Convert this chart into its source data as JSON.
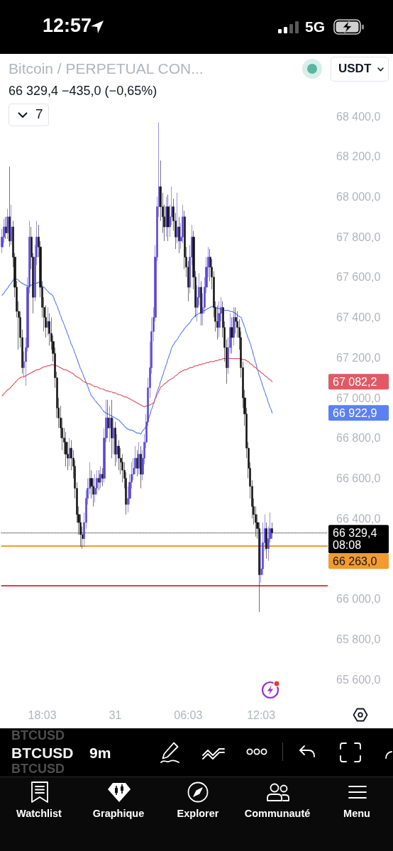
{
  "chart_data": {
    "type": "candlestick",
    "title": "Bitcoin / PERPETUAL CON...",
    "subtitle": "66 329,4 −435,0 (−0,65%)",
    "categories": [
      null,
      null,
      null,
      null,
      null,
      null,
      null,
      null,
      null,
      null,
      null,
      null,
      null,
      null,
      null,
      null,
      null,
      null,
      null,
      null,
      null,
      null,
      "18:03",
      null,
      null,
      null,
      null,
      null,
      null,
      null,
      null,
      null,
      null,
      null,
      null,
      null,
      null,
      null,
      null,
      null,
      null,
      null,
      null,
      null,
      null,
      null,
      null,
      null,
      null,
      null,
      null,
      null,
      null,
      null,
      null,
      null,
      null,
      null,
      null,
      null,
      null,
      null,
      "31",
      null,
      null,
      null,
      null,
      null,
      null,
      null,
      null,
      null,
      null,
      null,
      null,
      null,
      null,
      null,
      null,
      null,
      null,
      null,
      null,
      null,
      null,
      null,
      null,
      null,
      null,
      null,
      null,
      null,
      null,
      null,
      null,
      null,
      null,
      null,
      null,
      null,
      null,
      null,
      "06:03",
      null,
      null,
      null,
      null,
      null,
      null,
      null,
      null,
      null,
      null,
      null,
      null,
      null,
      null,
      null,
      null,
      null,
      null,
      null,
      null,
      null,
      null,
      null,
      null,
      null,
      null,
      null,
      null,
      null,
      null,
      null,
      null,
      null,
      null,
      null,
      null,
      null,
      null,
      null,
      "12:03",
      null,
      null,
      null,
      null,
      null,
      null,
      null,
      null,
      null,
      null,
      null,
      null,
      null,
      null,
      null,
      null,
      null,
      null,
      null,
      null,
      null,
      null,
      null,
      null,
      null,
      null,
      null,
      null,
      null,
      null,
      null,
      null,
      null,
      null,
      null,
      null
    ],
    "ohlc": [
      [
        67750,
        67840,
        67720,
        67800
      ],
      [
        67800,
        67890,
        67770,
        67850
      ],
      [
        67850,
        67900,
        67790,
        67820
      ],
      [
        67820,
        67940,
        67790,
        67900
      ],
      [
        67900,
        68150,
        67750,
        67780
      ],
      [
        67780,
        67960,
        67760,
        67850
      ],
      [
        67850,
        67880,
        67650,
        67700
      ],
      [
        67700,
        67720,
        67500,
        67550
      ],
      [
        67550,
        67580,
        67400,
        67430
      ],
      [
        67430,
        67480,
        67240,
        67400
      ],
      [
        67400,
        67430,
        67250,
        67300
      ],
      [
        67300,
        67340,
        67120,
        67150
      ],
      [
        67150,
        67230,
        67100,
        67180
      ],
      [
        67180,
        67300,
        67060,
        67250
      ],
      [
        67250,
        67600,
        67230,
        67550
      ],
      [
        67550,
        67880,
        67520,
        67800
      ],
      [
        67800,
        67850,
        67640,
        67700
      ],
      [
        67700,
        67720,
        67420,
        67500
      ],
      [
        67500,
        67760,
        67480,
        67700
      ],
      [
        67700,
        67880,
        67660,
        67800
      ],
      [
        67800,
        67860,
        67700,
        67750
      ],
      [
        67750,
        67780,
        67500,
        67550
      ],
      [
        67550,
        67580,
        67400,
        67450
      ],
      [
        67450,
        67500,
        67330,
        67400
      ],
      [
        67400,
        67460,
        67300,
        67350
      ],
      [
        67350,
        67450,
        67310,
        67380
      ],
      [
        67380,
        67420,
        67260,
        67320
      ],
      [
        67320,
        67400,
        67240,
        67280
      ],
      [
        67280,
        67310,
        67180,
        67220
      ],
      [
        67220,
        67250,
        67050,
        67100
      ],
      [
        67100,
        67130,
        66900,
        66950
      ],
      [
        66950,
        67000,
        66850,
        66900
      ],
      [
        66900,
        66960,
        66800,
        66850
      ],
      [
        66850,
        66900,
        66740,
        66800
      ],
      [
        66800,
        66850,
        66720,
        66780
      ],
      [
        66780,
        66830,
        66660,
        66720
      ],
      [
        66720,
        66780,
        66640,
        66700
      ],
      [
        66700,
        66800,
        66660,
        66750
      ],
      [
        66750,
        66790,
        66640,
        66700
      ],
      [
        66700,
        66740,
        66600,
        66660
      ],
      [
        66660,
        66690,
        66500,
        66550
      ],
      [
        66550,
        66580,
        66380,
        66420
      ],
      [
        66420,
        66460,
        66320,
        66380
      ],
      [
        66380,
        66420,
        66260,
        66320
      ],
      [
        66320,
        66360,
        66250,
        66300
      ],
      [
        66300,
        66430,
        66260,
        66380
      ],
      [
        66380,
        66540,
        66350,
        66500
      ],
      [
        66500,
        66600,
        66470,
        66550
      ],
      [
        66550,
        66680,
        66520,
        66600
      ],
      [
        66600,
        66640,
        66500,
        66560
      ],
      [
        66560,
        66600,
        66460,
        66520
      ],
      [
        66520,
        66620,
        66480,
        66550
      ],
      [
        66550,
        66640,
        66520,
        66600
      ],
      [
        66600,
        66640,
        66540,
        66580
      ],
      [
        66580,
        66660,
        66550,
        66620
      ],
      [
        66620,
        66650,
        66560,
        66600
      ],
      [
        66600,
        66850,
        66580,
        66800
      ],
      [
        66800,
        66990,
        66780,
        66900
      ],
      [
        66900,
        66990,
        66800,
        66850
      ],
      [
        66850,
        66960,
        66780,
        66900
      ],
      [
        66900,
        66990,
        66700,
        66800
      ],
      [
        66800,
        66900,
        66720,
        66850
      ],
      [
        66850,
        66880,
        66660,
        66720
      ],
      [
        66720,
        66820,
        66680,
        66760
      ],
      [
        66760,
        66790,
        66640,
        66700
      ],
      [
        66700,
        66750,
        66620,
        66680
      ],
      [
        66680,
        66720,
        66580,
        66640
      ],
      [
        66640,
        66680,
        66550,
        66600
      ],
      [
        66600,
        66630,
        66420,
        66470
      ],
      [
        66470,
        66560,
        66430,
        66500
      ],
      [
        66500,
        66620,
        66470,
        66580
      ],
      [
        66580,
        66680,
        66550,
        66620
      ],
      [
        66620,
        66700,
        66590,
        66650
      ],
      [
        66650,
        66760,
        66620,
        66700
      ],
      [
        66700,
        66740,
        66610,
        66650
      ],
      [
        66650,
        66780,
        66620,
        66720
      ],
      [
        66720,
        66760,
        66550,
        66620
      ],
      [
        66620,
        66740,
        66590,
        66700
      ],
      [
        66700,
        66820,
        66670,
        66780
      ],
      [
        66780,
        66920,
        66750,
        66880
      ],
      [
        66880,
        67100,
        66860,
        67050
      ],
      [
        67050,
        67280,
        67000,
        67150
      ],
      [
        67150,
        67400,
        67120,
        67330
      ],
      [
        67330,
        67450,
        67280,
        67400
      ],
      [
        67400,
        67760,
        67380,
        67700
      ],
      [
        67700,
        68000,
        67680,
        67950
      ],
      [
        67950,
        68370,
        67900,
        68050
      ],
      [
        68050,
        68180,
        67880,
        67950
      ],
      [
        67950,
        68020,
        67820,
        67900
      ],
      [
        67900,
        67960,
        67780,
        67850
      ],
      [
        67850,
        68000,
        67800,
        67950
      ],
      [
        67950,
        68010,
        67780,
        67850
      ],
      [
        67850,
        67960,
        67800,
        67900
      ],
      [
        67900,
        68050,
        67860,
        67950
      ],
      [
        67950,
        67990,
        67830,
        67880
      ],
      [
        67880,
        67920,
        67740,
        67800
      ],
      [
        67800,
        68020,
        67770,
        67850
      ],
      [
        67850,
        67900,
        67720,
        67780
      ],
      [
        67780,
        67870,
        67740,
        67800
      ],
      [
        67800,
        67960,
        67770,
        67900
      ],
      [
        67900,
        67930,
        67640,
        67700
      ],
      [
        67700,
        67750,
        67600,
        67650
      ],
      [
        67650,
        67680,
        67480,
        67550
      ],
      [
        67550,
        67760,
        67520,
        67700
      ],
      [
        67700,
        67860,
        67660,
        67800
      ],
      [
        67800,
        67830,
        67540,
        67600
      ],
      [
        67600,
        67630,
        67400,
        67450
      ],
      [
        67450,
        67560,
        67380,
        67500
      ],
      [
        67500,
        67620,
        67460,
        67550
      ],
      [
        67550,
        67580,
        67360,
        67420
      ],
      [
        67420,
        67520,
        67360,
        67450
      ],
      [
        67450,
        67600,
        67420,
        67550
      ],
      [
        67550,
        67700,
        67520,
        67650
      ],
      [
        67650,
        67750,
        67600,
        67700
      ],
      [
        67700,
        67740,
        67580,
        67650
      ],
      [
        67650,
        67690,
        67540,
        67600
      ],
      [
        67600,
        67630,
        67400,
        67450
      ],
      [
        67450,
        67480,
        67330,
        67380
      ],
      [
        67380,
        67460,
        67290,
        67350
      ],
      [
        67350,
        67480,
        67300,
        67420
      ],
      [
        67420,
        67500,
        67380,
        67450
      ],
      [
        67450,
        67480,
        67300,
        67350
      ],
      [
        67350,
        67380,
        67180,
        67250
      ],
      [
        67250,
        67290,
        67070,
        67150
      ],
      [
        67150,
        67300,
        67120,
        67250
      ],
      [
        67250,
        67420,
        67220,
        67350
      ],
      [
        67350,
        67400,
        67220,
        67300
      ],
      [
        67300,
        67450,
        67260,
        67400
      ],
      [
        67400,
        67450,
        67320,
        67380
      ],
      [
        67380,
        67430,
        67300,
        67350
      ],
      [
        67350,
        67390,
        67240,
        67300
      ],
      [
        67300,
        67330,
        67100,
        67150
      ],
      [
        67150,
        67180,
        66950,
        67000
      ],
      [
        67000,
        67040,
        66860,
        66920
      ],
      [
        66920,
        66950,
        66700,
        66750
      ],
      [
        66750,
        66780,
        66600,
        66650
      ],
      [
        66650,
        66680,
        66500,
        66560
      ],
      [
        66560,
        66590,
        66400,
        66460
      ],
      [
        66460,
        66500,
        66370,
        66420
      ],
      [
        66420,
        66460,
        66310,
        66380
      ],
      [
        66380,
        66420,
        66300,
        66350
      ],
      [
        66350,
        66380,
        65935,
        66120
      ],
      [
        66120,
        66330,
        66080,
        66150
      ],
      [
        66150,
        66380,
        66120,
        66280
      ],
      [
        66280,
        66420,
        66240,
        66350
      ],
      [
        66350,
        66380,
        66200,
        66250
      ],
      [
        66250,
        66360,
        66190,
        66300
      ],
      [
        66300,
        66430,
        66280,
        66350
      ],
      [
        66350,
        66380,
        66300,
        66329.4
      ],
      null,
      null,
      null,
      null,
      null,
      null,
      null,
      null,
      null,
      null,
      null,
      null,
      null,
      null,
      null,
      null,
      null,
      null,
      null,
      null,
      null,
      null,
      null,
      null,
      null,
      null,
      null,
      null,
      null,
      null
    ],
    "colors": [
      "#5b46d6",
      "#5b46d6",
      "#141414",
      "#5b46d6",
      "#141414",
      "#5b46d6",
      "#141414",
      "#141414",
      "#141414",
      "#141414",
      "#141414",
      "#141414",
      "#5b46d6",
      "#5b46d6",
      "#5b46d6",
      "#5b46d6",
      "#141414",
      "#141414",
      "#5b46d6",
      "#5b46d6",
      "#141414",
      "#141414",
      "#141414",
      "#141414",
      "#141414",
      "#5b46d6",
      "#141414",
      "#141414",
      "#141414",
      "#141414",
      "#141414",
      "#141414",
      "#141414",
      "#141414",
      "#141414",
      "#141414",
      "#141414",
      "#5b46d6",
      "#141414",
      "#141414",
      "#141414",
      "#141414",
      "#141414",
      "#141414",
      "#141414",
      "#5b46d6",
      "#5b46d6",
      "#5b46d6",
      "#5b46d6",
      "#141414",
      "#141414",
      "#5b46d6",
      "#5b46d6",
      "#141414",
      "#5b46d6",
      "#141414",
      "#5b46d6",
      "#5b46d6",
      "#141414",
      "#5b46d6",
      "#141414",
      "#5b46d6",
      "#141414",
      "#5b46d6",
      "#141414",
      "#141414",
      "#141414",
      "#141414",
      "#141414",
      "#5b46d6",
      "#5b46d6",
      "#5b46d6",
      "#5b46d6",
      "#5b46d6",
      "#141414",
      "#5b46d6",
      "#141414",
      "#5b46d6",
      "#5b46d6",
      "#5b46d6",
      "#5b46d6",
      "#5b46d6",
      "#5b46d6",
      "#5b46d6",
      "#5b46d6",
      "#5b46d6",
      "#5b46d6",
      "#141414",
      "#141414",
      "#141414",
      "#5b46d6",
      "#141414",
      "#5b46d6",
      "#5b46d6",
      "#141414",
      "#141414",
      "#5b46d6",
      "#141414",
      "#5b46d6",
      "#5b46d6",
      "#141414",
      "#141414",
      "#141414",
      "#5b46d6",
      "#5b46d6",
      "#141414",
      "#141414",
      "#5b46d6",
      "#5b46d6",
      "#141414",
      "#5b46d6",
      "#5b46d6",
      "#5b46d6",
      "#5b46d6",
      "#141414",
      "#141414",
      "#141414",
      "#141414",
      "#141414",
      "#5b46d6",
      "#5b46d6",
      "#141414",
      "#141414",
      "#141414",
      "#5b46d6",
      "#5b46d6",
      "#141414",
      "#5b46d6",
      "#141414",
      "#141414",
      "#141414",
      "#141414",
      "#141414",
      "#141414",
      "#141414",
      "#141414",
      "#141414",
      "#141414",
      "#141414",
      "#141414",
      "#141414",
      "#141414",
      "#5b46d6",
      "#5b46d6",
      "#5b46d6",
      "#141414",
      "#5b46d6",
      "#5b46d6",
      "#141414",
      null,
      null,
      null,
      null,
      null,
      null,
      null,
      null,
      null,
      null,
      null,
      null,
      null,
      null,
      null,
      null,
      null,
      null,
      null,
      null,
      null,
      null,
      null,
      null,
      null,
      null,
      null,
      null,
      null,
      null
    ],
    "series": [
      {
        "type": "line",
        "color": "#5a80f2",
        "values": [
          67510,
          67520,
          67535,
          67545,
          67560,
          67570,
          67585,
          67595,
          67590,
          67585,
          67575,
          67570,
          67565,
          67560,
          67555,
          67560,
          67560,
          67565,
          67570,
          67570,
          67575,
          67565,
          67555,
          67550,
          67540,
          67530,
          67520,
          67515,
          67505,
          67480,
          67460,
          67435,
          67410,
          67385,
          67365,
          67340,
          67315,
          67290,
          67265,
          67245,
          67220,
          67195,
          67170,
          67145,
          67125,
          67100,
          67080,
          67055,
          67030,
          67010,
          67000,
          66985,
          66975,
          66965,
          66955,
          66940,
          66930,
          66925,
          66920,
          66915,
          66910,
          66905,
          66900,
          66895,
          66890,
          66880,
          66870,
          66860,
          66850,
          66845,
          66840,
          66840,
          66835,
          66830,
          66825,
          66825,
          66820,
          66835,
          66845,
          66860,
          66890,
          66915,
          66945,
          66970,
          67000,
          67030,
          67055,
          67085,
          67110,
          67140,
          67165,
          67195,
          67220,
          67250,
          67265,
          67280,
          67290,
          67305,
          67320,
          67330,
          67345,
          67355,
          67365,
          67375,
          67390,
          67400,
          67410,
          67415,
          67420,
          67425,
          67430,
          67435,
          67440,
          67445,
          67450,
          67455,
          67450,
          67450,
          67445,
          67445,
          67440,
          67440,
          67435,
          67435,
          67435,
          67430,
          67430,
          67425,
          67420,
          67410,
          67405,
          67400,
          67375,
          67350,
          67320,
          67295,
          67270,
          67240,
          67205,
          67175,
          67140,
          67110,
          67085,
          67055,
          67030,
          67005,
          66975,
          66950,
          66925,
          null,
          null,
          null,
          null,
          null,
          null,
          null,
          null,
          null,
          null,
          null,
          null,
          null,
          null,
          null,
          null,
          null,
          null,
          null,
          null,
          null,
          null,
          null,
          null,
          null,
          null,
          null,
          null,
          null,
          null
        ]
      },
      {
        "type": "line",
        "color": "#e05a64",
        "values": [
          67010,
          67020,
          67030,
          67040,
          67045,
          67055,
          67065,
          67075,
          67085,
          67095,
          67100,
          67105,
          67105,
          67110,
          67115,
          67120,
          67125,
          67130,
          67135,
          67140,
          67140,
          67145,
          67150,
          67155,
          67155,
          67160,
          67160,
          67165,
          67165,
          67160,
          67160,
          67155,
          67150,
          67145,
          67140,
          67140,
          67135,
          67130,
          67125,
          67120,
          67110,
          67105,
          67100,
          67095,
          67085,
          67080,
          67075,
          67070,
          67070,
          67065,
          67060,
          67055,
          67055,
          67050,
          67045,
          67045,
          67040,
          67035,
          67035,
          67030,
          67030,
          67025,
          67025,
          67020,
          67015,
          67015,
          67010,
          67005,
          67005,
          67000,
          66995,
          66990,
          66985,
          66980,
          66975,
          66970,
          66965,
          66960,
          66955,
          66960,
          66960,
          66965,
          66970,
          66975,
          66995,
          67015,
          67035,
          67055,
          67060,
          67070,
          67075,
          67085,
          67090,
          67095,
          67100,
          67110,
          67115,
          67125,
          67130,
          67135,
          67140,
          67140,
          67145,
          67150,
          67150,
          67155,
          67160,
          67160,
          67165,
          67165,
          67170,
          67170,
          67175,
          67175,
          67180,
          67180,
          67180,
          67185,
          67185,
          67190,
          67190,
          67195,
          67195,
          67195,
          67195,
          67195,
          67195,
          67195,
          67195,
          67195,
          67195,
          67195,
          67190,
          67190,
          67185,
          67180,
          67170,
          67165,
          67155,
          67150,
          67140,
          67135,
          67125,
          67120,
          67110,
          67105,
          67095,
          67090,
          67080,
          null,
          null,
          null,
          null,
          null,
          null,
          null,
          null,
          null,
          null,
          null,
          null,
          null,
          null,
          null,
          null,
          null,
          null,
          null,
          null,
          null,
          null,
          null,
          null,
          null,
          null,
          null,
          null,
          null,
          null
        ]
      }
    ],
    "ylim": [
      65600,
      68400
    ],
    "yticks": [
      {
        "value": 65600,
        "label": "65 600,0"
      },
      {
        "value": 65800,
        "label": "65 800,0"
      },
      {
        "value": 66000,
        "label": "66 000,0"
      },
      {
        "value": 66400,
        "label": "66 400,0"
      },
      {
        "value": 66600,
        "label": "66 600,0"
      },
      {
        "value": 66800,
        "label": "66 800,0"
      },
      {
        "value": 67000,
        "label": "67 000,0"
      },
      {
        "value": 67200,
        "label": "67 200,0"
      },
      {
        "value": 67400,
        "label": "67 400,0"
      },
      {
        "value": 67600,
        "label": "67 600,0"
      },
      {
        "value": 67800,
        "label": "67 800,0"
      },
      {
        "value": 68000,
        "label": "68 000,0"
      },
      {
        "value": 68200,
        "label": "68 200,0"
      },
      {
        "value": 68400,
        "label": "68 400,0"
      }
    ],
    "ref_lines": [
      {
        "axis": "y",
        "value": 66329.4,
        "label": "66 329,4",
        "color": "#000000",
        "line_style": "dotted"
      },
      {
        "axis": "y",
        "value": 66263,
        "label": "66 263,0",
        "color": "#f29b30"
      },
      {
        "axis": "y",
        "value": 66065,
        "color": "#e23c44"
      }
    ],
    "annotations": [
      "12:57",
      "5G",
      "USDT",
      "7",
      "BTCUSD",
      "BTCUSD",
      "BTCUSD",
      "9m",
      "Watchlist",
      "Graphique",
      "Explorer",
      "Communauté",
      "Menu",
      "08:08",
      "67 082,2",
      "66 922,9"
    ]
  }
}
